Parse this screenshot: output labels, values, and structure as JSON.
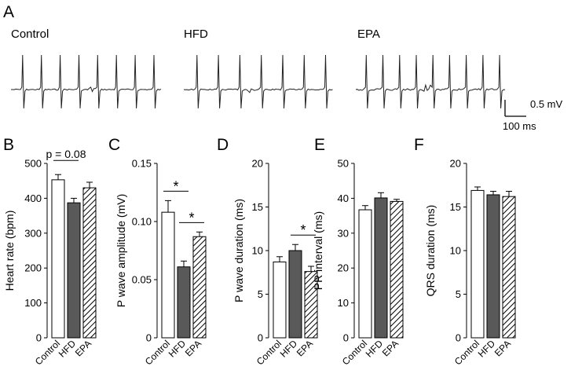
{
  "panel_a": {
    "letter": "A",
    "traces": [
      {
        "label": "Control",
        "beats": 8
      },
      {
        "label": "HFD",
        "beats": 7
      },
      {
        "label": "EPA",
        "beats": 9
      }
    ],
    "scale_bar": {
      "voltage": "0.5 mV",
      "time": "100 ms"
    }
  },
  "chart_data": [
    {
      "letter": "B",
      "type": "bar",
      "categories": [
        "Control",
        "HFD",
        "EPA"
      ],
      "values": [
        453,
        387,
        430
      ],
      "errors": [
        15,
        13,
        16
      ],
      "ylabel": "Heart rate (bpm)",
      "ylim": [
        0,
        500
      ],
      "ticks": [
        "0",
        "100",
        "200",
        "300",
        "400",
        "500"
      ],
      "annotations": [
        {
          "text": "p = 0.08",
          "between": [
            0,
            1
          ]
        }
      ]
    },
    {
      "letter": "C",
      "type": "bar",
      "categories": [
        "Control",
        "HFD",
        "EPA"
      ],
      "values": [
        0.108,
        0.061,
        0.087
      ],
      "errors": [
        0.01,
        0.005,
        0.004
      ],
      "ylabel": "P wave amplitude (mV)",
      "ylim": [
        0,
        0.15
      ],
      "ticks": [
        "0",
        "0.05",
        "0.10",
        "0.15"
      ],
      "annotations": [
        {
          "text": "*",
          "between": [
            0,
            1
          ]
        },
        {
          "text": "*",
          "between": [
            1,
            2
          ]
        }
      ]
    },
    {
      "letter": "D",
      "type": "bar",
      "categories": [
        "Control",
        "HFD",
        "EPA"
      ],
      "values": [
        8.7,
        10.0,
        7.6
      ],
      "errors": [
        0.6,
        0.7,
        0.6
      ],
      "ylabel": "P wave duration (ms)",
      "ylim": [
        0,
        20
      ],
      "ticks": [
        "0",
        "5",
        "10",
        "15",
        "20"
      ],
      "annotations": [
        {
          "text": "*",
          "between": [
            1,
            2
          ]
        }
      ]
    },
    {
      "letter": "E",
      "type": "bar",
      "categories": [
        "Control",
        "HFD",
        "EPA"
      ],
      "values": [
        36.7,
        40.1,
        39.1
      ],
      "errors": [
        1.2,
        1.5,
        0.6
      ],
      "ylabel": "PR interval  (ms)",
      "ylim": [
        0,
        50
      ],
      "ticks": [
        "0",
        "10",
        "20",
        "30",
        "40",
        "50"
      ],
      "annotations": []
    },
    {
      "letter": "F",
      "type": "bar",
      "categories": [
        "Control",
        "HFD",
        "EPA"
      ],
      "values": [
        16.9,
        16.4,
        16.2
      ],
      "errors": [
        0.4,
        0.4,
        0.6
      ],
      "ylabel": "QRS duration (ms)",
      "ylim": [
        0,
        20
      ],
      "ticks": [
        "0",
        "5",
        "10",
        "15",
        "20"
      ],
      "annotations": []
    }
  ],
  "colors": {
    "control_fill": "#ffffff",
    "hfd_fill": "#595959",
    "epa_hatch": "#000000",
    "stroke": "#000000"
  }
}
